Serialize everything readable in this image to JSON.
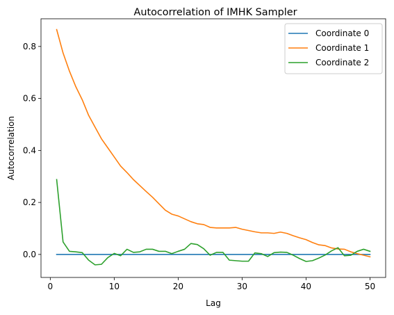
{
  "chart_data": {
    "type": "line",
    "title": "Autocorrelation of IMHK Sampler",
    "xlabel": "Lag",
    "ylabel": "Autocorrelation",
    "xlim": [
      -1.45,
      52.45
    ],
    "ylim": [
      -0.0885,
      0.9065
    ],
    "xticks": [
      0,
      10,
      20,
      30,
      40,
      50
    ],
    "yticks": [
      0.0,
      0.2,
      0.4,
      0.6,
      0.8
    ],
    "xtick_labels": [
      "0",
      "10",
      "20",
      "30",
      "40",
      "50"
    ],
    "ytick_labels": [
      "0.0",
      "0.2",
      "0.4",
      "0.6",
      "0.8"
    ],
    "grid": false,
    "legend_position": "top-right",
    "x": [
      1,
      2,
      3,
      4,
      5,
      6,
      7,
      8,
      9,
      10,
      11,
      12,
      13,
      14,
      15,
      16,
      17,
      18,
      19,
      20,
      21,
      22,
      23,
      24,
      25,
      26,
      27,
      28,
      29,
      30,
      31,
      32,
      33,
      34,
      35,
      36,
      37,
      38,
      39,
      40,
      41,
      42,
      43,
      44,
      45,
      46,
      47,
      48,
      49,
      50
    ],
    "series": [
      {
        "name": "Coordinate 0",
        "color": "#1f77b4",
        "values": [
          0,
          0,
          0,
          0,
          0,
          0,
          0,
          0,
          0,
          0,
          0,
          0,
          0,
          0,
          0,
          0,
          0,
          0,
          0,
          0,
          0,
          0,
          0,
          0,
          0,
          0,
          0,
          0,
          0,
          0,
          0,
          0,
          0,
          0,
          0,
          0,
          0,
          0,
          0,
          0,
          0,
          0,
          0,
          0,
          0,
          0,
          0,
          0,
          0,
          0
        ]
      },
      {
        "name": "Coordinate 1",
        "color": "#ff7f0e",
        "values": [
          0.865,
          0.775,
          0.705,
          0.645,
          0.595,
          0.535,
          0.49,
          0.445,
          0.41,
          0.375,
          0.34,
          0.315,
          0.288,
          0.265,
          0.242,
          0.22,
          0.195,
          0.17,
          0.155,
          0.148,
          0.137,
          0.126,
          0.118,
          0.115,
          0.104,
          0.102,
          0.102,
          0.102,
          0.104,
          0.097,
          0.092,
          0.087,
          0.083,
          0.083,
          0.081,
          0.086,
          0.081,
          0.072,
          0.064,
          0.057,
          0.046,
          0.037,
          0.034,
          0.025,
          0.021,
          0.02,
          0.01,
          0.003,
          -0.003,
          -0.009
        ]
      },
      {
        "name": "Coordinate 2",
        "color": "#2ca02c",
        "values": [
          0.288,
          0.048,
          0.012,
          0.01,
          0.007,
          -0.022,
          -0.04,
          -0.038,
          -0.012,
          0.004,
          -0.005,
          0.02,
          0.008,
          0.01,
          0.02,
          0.02,
          0.012,
          0.012,
          0.003,
          0.012,
          0.02,
          0.042,
          0.038,
          0.022,
          -0.003,
          0.008,
          0.008,
          -0.022,
          -0.024,
          -0.026,
          -0.026,
          0.006,
          0.003,
          -0.008,
          0.007,
          0.009,
          0.008,
          -0.003,
          -0.016,
          -0.027,
          -0.024,
          -0.014,
          -0.002,
          0.014,
          0.026,
          -0.005,
          -0.003,
          0.012,
          0.02,
          0.012
        ]
      }
    ]
  }
}
